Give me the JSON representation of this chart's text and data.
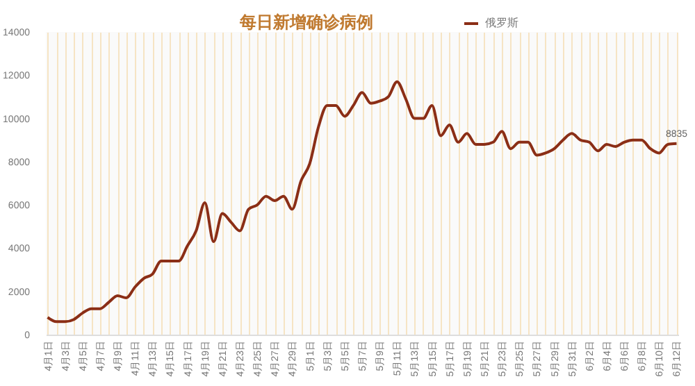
{
  "chart_data": {
    "type": "line",
    "title": "每日新增确诊病例",
    "categories": [
      "4月1日",
      null,
      "4月3日",
      null,
      "4月5日",
      null,
      "4月7日",
      null,
      "4月9日",
      null,
      "4月11日",
      null,
      "4月13日",
      null,
      "4月15日",
      null,
      "4月17日",
      null,
      "4月19日",
      null,
      "4月21日",
      null,
      "4月23日",
      null,
      "4月25日",
      null,
      "4月27日",
      null,
      "4月29日",
      null,
      "5月1日",
      null,
      "5月3日",
      null,
      "5月5日",
      null,
      "5月7日",
      null,
      "5月9日",
      null,
      "5月11日",
      null,
      "5月13日",
      null,
      "5月15日",
      null,
      "5月17日",
      null,
      "5月19日",
      null,
      "5月21日",
      null,
      "5月23日",
      null,
      "5月25日",
      null,
      "5月27日",
      null,
      "5月29日",
      null,
      "5月31日",
      null,
      "6月2日",
      null,
      "6月4日",
      null,
      "6月6日",
      null,
      "6月8日",
      null,
      "6月10日",
      null,
      "6月12日"
    ],
    "series": [
      {
        "name": "俄罗斯",
        "color": "#8b2e16",
        "values": [
          800,
          600,
          600,
          700,
          1000,
          1200,
          1200,
          1500,
          1800,
          1700,
          2200,
          2600,
          2800,
          3400,
          3400,
          3400,
          4100,
          4800,
          6100,
          4300,
          5600,
          5200,
          4800,
          5800,
          6000,
          6400,
          6200,
          6400,
          5800,
          7100,
          7900,
          9600,
          10600,
          10600,
          10100,
          10600,
          11200,
          10700,
          10800,
          11000,
          11700,
          10900,
          10000,
          10000,
          10600,
          9200,
          9700,
          8900,
          9300,
          8800,
          8800,
          8900,
          9400,
          8600,
          8900,
          8900,
          8300,
          8400,
          8600,
          9000,
          9300,
          9000,
          8900,
          8500,
          8800,
          8700,
          8900,
          9000,
          9000,
          8600,
          8400,
          8800,
          8835
        ],
        "value_labels": [
          null,
          null,
          null,
          null,
          null,
          null,
          null,
          null,
          null,
          null,
          null,
          null,
          null,
          null,
          null,
          null,
          null,
          null,
          null,
          null,
          null,
          null,
          null,
          null,
          null,
          null,
          null,
          null,
          null,
          null,
          null,
          null,
          null,
          null,
          null,
          null,
          null,
          null,
          null,
          null,
          null,
          null,
          null,
          null,
          null,
          null,
          null,
          null,
          null,
          null,
          null,
          null,
          null,
          null,
          null,
          null,
          null,
          null,
          null,
          null,
          null,
          null,
          null,
          null,
          null,
          null,
          null,
          null,
          null,
          null,
          null,
          null,
          "8835"
        ]
      }
    ],
    "ylim": [
      0,
      14000
    ],
    "yticks": [
      0,
      2000,
      4000,
      6000,
      8000,
      10000,
      12000,
      14000
    ],
    "grid": "x",
    "legend": "top right"
  }
}
